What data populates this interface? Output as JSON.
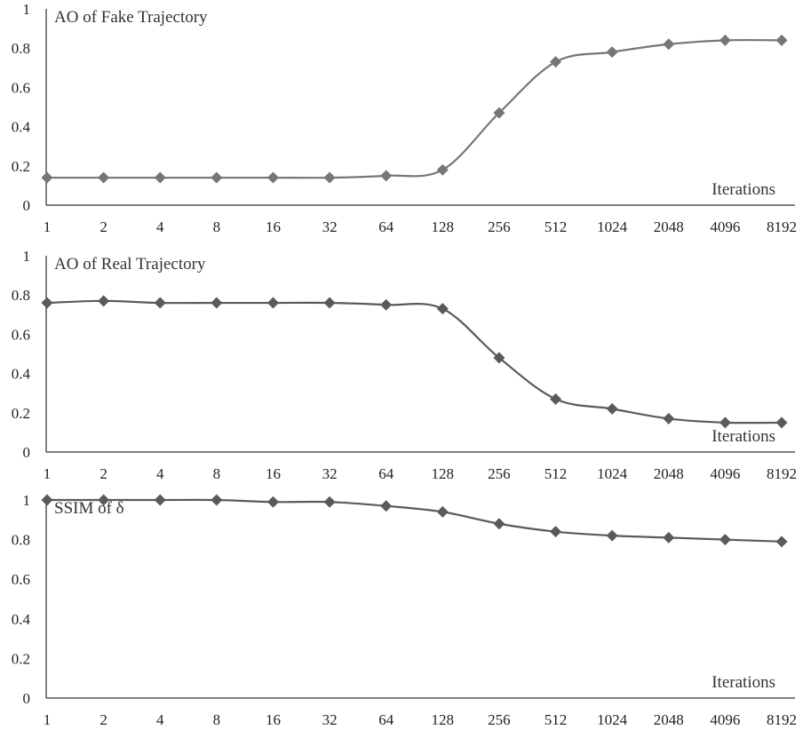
{
  "chart_data": [
    {
      "type": "line",
      "title": "AO of Fake Trajectory",
      "xlabel": "Iterations",
      "ylabel": "",
      "categories": [
        "1",
        "2",
        "4",
        "8",
        "16",
        "32",
        "64",
        "128",
        "256",
        "512",
        "1024",
        "2048",
        "4096",
        "8192"
      ],
      "yticks": [
        "0",
        "0.2",
        "0.4",
        "0.6",
        "0.8",
        "1"
      ],
      "ylim": [
        0,
        1
      ],
      "legend": "none",
      "grid": false,
      "color": "#767676",
      "series": [
        {
          "values": [
            0.14,
            0.14,
            0.14,
            0.14,
            0.14,
            0.14,
            0.15,
            0.18,
            0.47,
            0.73,
            0.78,
            0.82,
            0.84,
            0.84
          ]
        }
      ]
    },
    {
      "type": "line",
      "title": "AO of Real Trajectory",
      "xlabel": "Iterations",
      "ylabel": "",
      "categories": [
        "1",
        "2",
        "4",
        "8",
        "16",
        "32",
        "64",
        "128",
        "256",
        "512",
        "1024",
        "2048",
        "4096",
        "8192"
      ],
      "yticks": [
        "0",
        "0.2",
        "0.4",
        "0.6",
        "0.8",
        "1"
      ],
      "ylim": [
        0,
        1
      ],
      "legend": "none",
      "grid": false,
      "color": "#5a5a5a",
      "series": [
        {
          "values": [
            0.76,
            0.77,
            0.76,
            0.76,
            0.76,
            0.76,
            0.75,
            0.73,
            0.48,
            0.27,
            0.22,
            0.17,
            0.15,
            0.15
          ]
        }
      ]
    },
    {
      "type": "line",
      "title": "SSIM of δ",
      "xlabel": "Iterations",
      "ylabel": "",
      "categories": [
        "1",
        "2",
        "4",
        "8",
        "16",
        "32",
        "64",
        "128",
        "256",
        "512",
        "1024",
        "2048",
        "4096",
        "8192"
      ],
      "yticks": [
        "0",
        "0.2",
        "0.4",
        "0.6",
        "0.8",
        "1"
      ],
      "ylim": [
        0,
        1
      ],
      "legend": "none",
      "grid": false,
      "color": "#5a5a5a",
      "series": [
        {
          "values": [
            1.0,
            1.0,
            1.0,
            1.0,
            0.99,
            0.99,
            0.97,
            0.94,
            0.88,
            0.84,
            0.82,
            0.81,
            0.8,
            0.79
          ]
        }
      ]
    }
  ]
}
